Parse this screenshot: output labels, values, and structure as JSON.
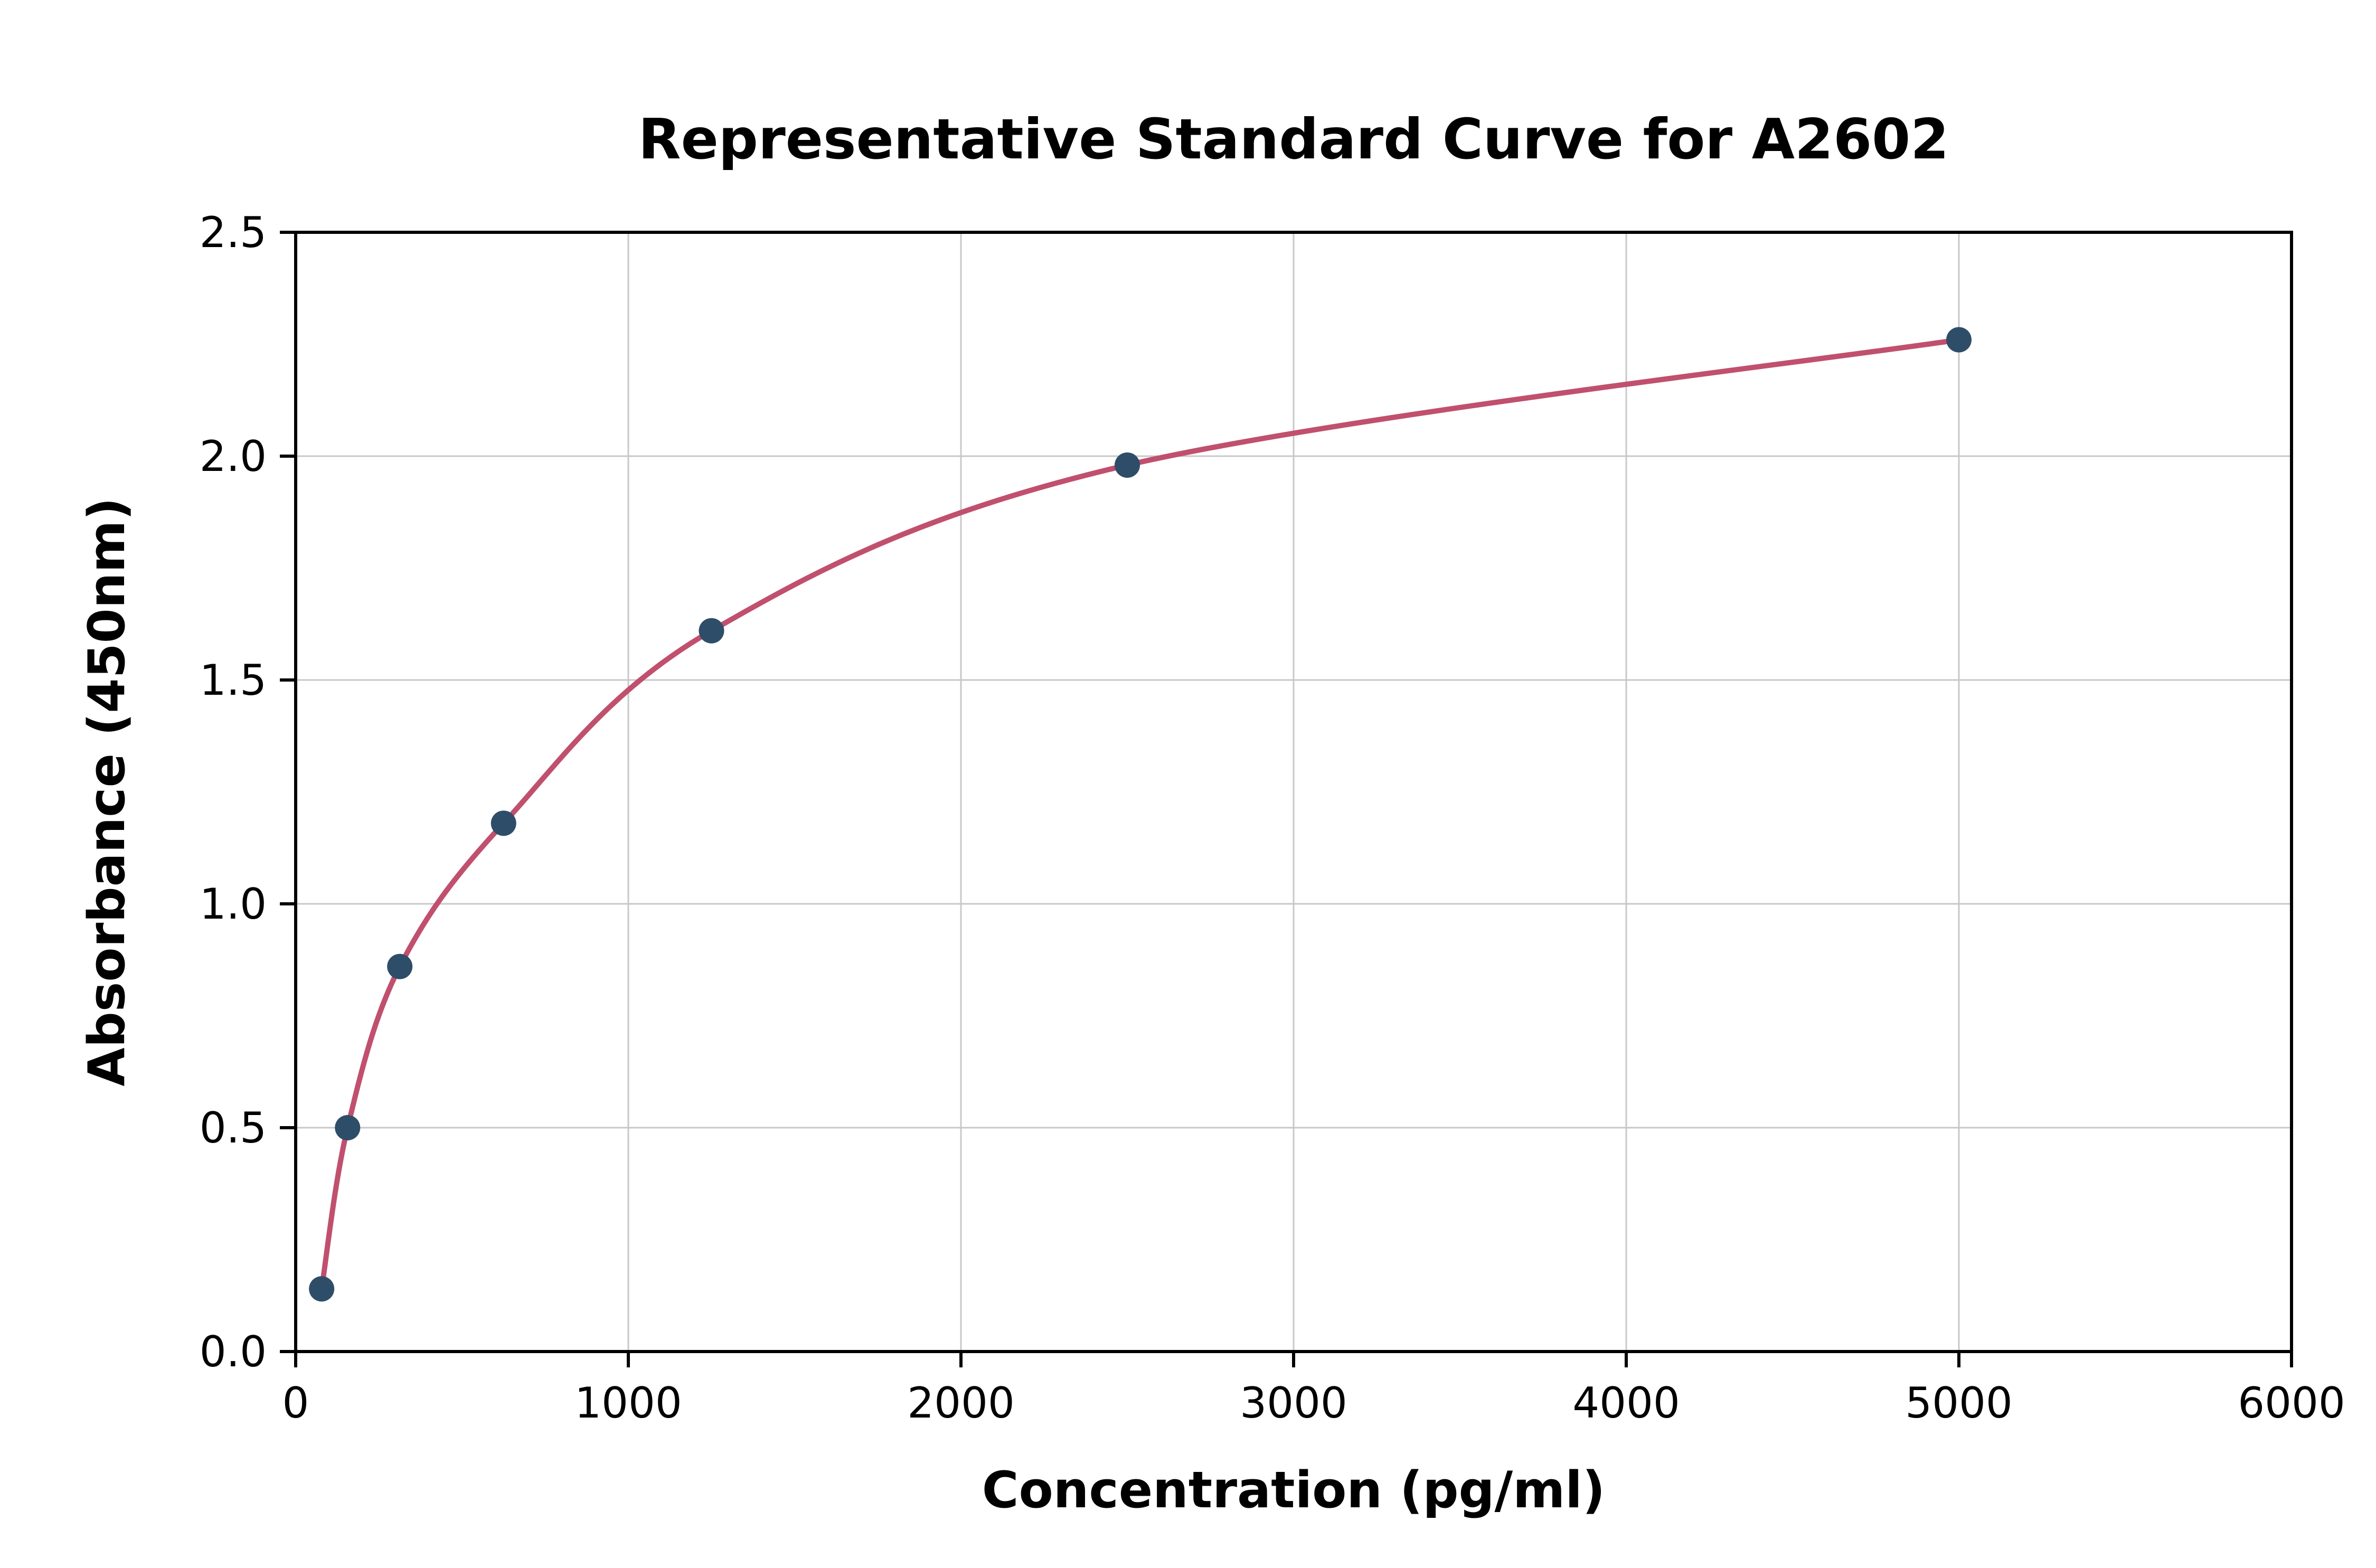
{
  "chart_data": {
    "type": "scatter",
    "title": "Representative Standard Curve for A2602",
    "xlabel": "Concentration (pg/ml)",
    "ylabel": "Absorbance (450nm)",
    "xlim": [
      0,
      6000
    ],
    "ylim": [
      0,
      2.5
    ],
    "x_ticks": [
      0,
      1000,
      2000,
      3000,
      4000,
      5000,
      6000
    ],
    "x_tick_labels": [
      "0",
      "1000",
      "2000",
      "3000",
      "4000",
      "5000",
      "6000"
    ],
    "y_ticks": [
      0,
      0.5,
      1.0,
      1.5,
      2.0,
      2.5
    ],
    "y_tick_labels": [
      "0.0",
      "0.5",
      "1.0",
      "1.5",
      "2.0",
      "2.5"
    ],
    "grid": true,
    "legend": "none",
    "points": {
      "x": [
        78,
        156,
        313,
        625,
        1250,
        2500,
        5000
      ],
      "y": [
        0.14,
        0.5,
        0.86,
        1.18,
        1.61,
        1.98,
        2.26
      ]
    },
    "curve_color": "#c0506e",
    "point_color": "#2e4d68",
    "grid_color": "#c8c8c8",
    "frame_color": "#000000"
  }
}
